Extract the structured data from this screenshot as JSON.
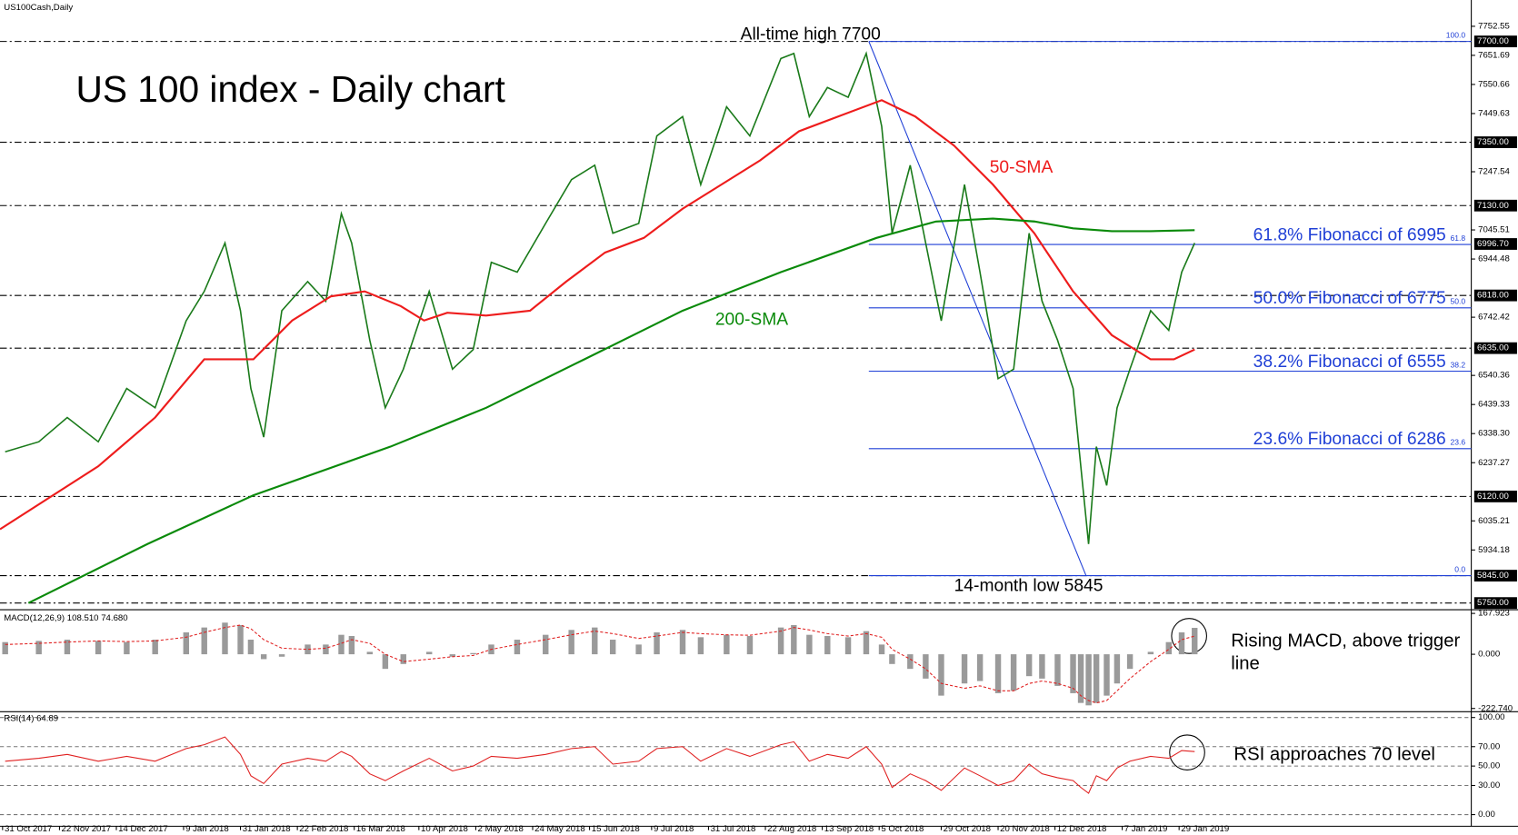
{
  "chart_data": {
    "type": "line",
    "symbol": "US100Cash,Daily",
    "title": "US 100 index - Daily chart",
    "annotations": [
      "All-time high 7700",
      "14-month low 5845"
    ],
    "xlim": [
      "2017-10-30",
      "2019-05-22"
    ],
    "xticks": [
      {
        "value": "2017-10-31",
        "label": "31 Oct 2017"
      },
      {
        "value": "2017-11-22",
        "label": "22 Nov 2017"
      },
      {
        "value": "2017-12-14",
        "label": "14 Dec 2017"
      },
      {
        "value": "2018-01-09",
        "label": "9 Jan 2018"
      },
      {
        "value": "2018-01-31",
        "label": "31 Jan 2018"
      },
      {
        "value": "2018-02-22",
        "label": "22 Feb 2018"
      },
      {
        "value": "2018-03-16",
        "label": "16 Mar 2018"
      },
      {
        "value": "2018-04-10",
        "label": "10 Apr 2018"
      },
      {
        "value": "2018-05-02",
        "label": "2 May 2018"
      },
      {
        "value": "2018-05-24",
        "label": "24 May 2018"
      },
      {
        "value": "2018-06-15",
        "label": "15 Jun 2018"
      },
      {
        "value": "2018-07-09",
        "label": "9 Jul 2018"
      },
      {
        "value": "2018-07-31",
        "label": "31 Jul 2018"
      },
      {
        "value": "2018-08-22",
        "label": "22 Aug 2018"
      },
      {
        "value": "2018-09-13",
        "label": "13 Sep 2018"
      },
      {
        "value": "2018-10-05",
        "label": "5 Oct 2018"
      },
      {
        "value": "2018-10-29",
        "label": "29 Oct 2018"
      },
      {
        "value": "2018-11-20",
        "label": "20 Nov 2018"
      },
      {
        "value": "2018-12-12",
        "label": "12 Dec 2018"
      },
      {
        "value": "2019-01-07",
        "label": "7 Jan 2019"
      },
      {
        "value": "2019-01-29",
        "label": "29 Jan 2019"
      }
    ],
    "ylim": [
      5730,
      7827
    ],
    "yticks": [
      {
        "value": 7752.55,
        "label": "7752.55"
      },
      {
        "value": 7651.69,
        "label": "7651.69"
      },
      {
        "value": 7550.66,
        "label": "7550.66"
      },
      {
        "value": 7449.63,
        "label": "7449.63"
      },
      {
        "value": 7247.54,
        "label": "7247.54"
      },
      {
        "value": 7045.51,
        "label": "7045.51"
      },
      {
        "value": 6944.48,
        "label": "6944.48"
      },
      {
        "value": 6742.42,
        "label": "6742.42"
      },
      {
        "value": 6540.36,
        "label": "6540.36"
      },
      {
        "value": 6439.33,
        "label": "6439.33"
      },
      {
        "value": 6338.3,
        "label": "6338.30"
      },
      {
        "value": 6237.27,
        "label": "6237.27"
      },
      {
        "value": 6035.21,
        "label": "6035.21"
      },
      {
        "value": 5934.18,
        "label": "5934.18"
      }
    ],
    "levels": [
      {
        "value": 7700,
        "label": "7700.00"
      },
      {
        "value": 7350,
        "label": "7350.00"
      },
      {
        "value": 7130,
        "label": "7130.00"
      },
      {
        "value": 6818,
        "label": "6818.00"
      },
      {
        "value": 6635,
        "label": "6635.00"
      },
      {
        "value": 6120,
        "label": "6120.00"
      },
      {
        "value": 5845,
        "label": "5845.00"
      },
      {
        "value": 5750,
        "label": "5750.00"
      }
    ],
    "last_price": {
      "value": 6996.7,
      "label": "6996.70"
    },
    "series": [
      {
        "color": "#1a7a1a",
        "x": [
          "2017-11-01",
          "2017-11-14",
          "2017-11-25",
          "2017-12-07",
          "2017-12-18",
          "2017-12-29",
          "2018-01-10",
          "2018-01-17",
          "2018-01-25",
          "2018-01-31",
          "2018-02-04",
          "2018-02-09",
          "2018-02-16",
          "2018-02-26",
          "2018-03-05",
          "2018-03-11",
          "2018-03-15",
          "2018-03-22",
          "2018-03-28",
          "2018-04-04",
          "2018-04-14",
          "2018-04-23",
          "2018-05-01",
          "2018-05-08",
          "2018-05-18",
          "2018-05-29",
          "2018-06-08",
          "2018-06-17",
          "2018-06-24",
          "2018-07-04",
          "2018-07-11",
          "2018-07-21",
          "2018-07-28",
          "2018-08-07",
          "2018-08-16",
          "2018-08-28",
          "2018-09-02",
          "2018-09-08",
          "2018-09-15",
          "2018-09-23",
          "2018-09-30",
          "2018-10-06",
          "2018-10-10",
          "2018-10-17",
          "2018-10-23",
          "2018-10-29",
          "2018-11-07",
          "2018-11-13",
          "2018-11-20",
          "2018-11-26",
          "2018-12-02",
          "2018-12-07",
          "2018-12-13",
          "2018-12-19",
          "2018-12-22",
          "2018-12-25",
          "2018-12-28",
          "2019-01-01",
          "2019-01-05",
          "2019-01-10",
          "2019-01-18",
          "2019-01-25",
          "2019-01-30",
          "2019-02-04"
        ],
        "values": [
          6275,
          6310,
          6394,
          6310,
          6495,
          6428,
          6730,
          6832,
          7000,
          6765,
          6495,
          6326,
          6765,
          6866,
          6798,
          7102,
          7000,
          6663,
          6428,
          6562,
          6832,
          6562,
          6630,
          6933,
          6899,
          7068,
          7220,
          7270,
          7034,
          7068,
          7372,
          7439,
          7203,
          7473,
          7372,
          7641,
          7658,
          7439,
          7540,
          7506,
          7658,
          7405,
          7034,
          7270,
          7000,
          6730,
          7203,
          6899,
          6529,
          6562,
          7034,
          6798,
          6663,
          6495,
          6225,
          5955,
          6293,
          6158,
          6428,
          6562,
          6765,
          6697,
          6899,
          7000
        ]
      },
      {
        "name": "50-SMA",
        "color": "#ee1c1c",
        "x": [
          "2017-10-30",
          "2017-12-07",
          "2017-12-29",
          "2018-01-17",
          "2018-02-05",
          "2018-02-20",
          "2018-03-07",
          "2018-03-20",
          "2018-04-03",
          "2018-04-12",
          "2018-04-21",
          "2018-05-06",
          "2018-05-23",
          "2018-06-06",
          "2018-06-21",
          "2018-07-06",
          "2018-07-21",
          "2018-08-05",
          "2018-08-20",
          "2018-09-04",
          "2018-09-19",
          "2018-10-06",
          "2018-10-19",
          "2018-11-03",
          "2018-11-18",
          "2018-12-04",
          "2018-12-19",
          "2019-01-03",
          "2019-01-18",
          "2019-01-27",
          "2019-02-04"
        ],
        "values": [
          6006,
          6225,
          6394,
          6596,
          6596,
          6731,
          6815,
          6832,
          6781,
          6731,
          6758,
          6748,
          6765,
          6866,
          6967,
          7018,
          7119,
          7203,
          7287,
          7388,
          7439,
          7496,
          7439,
          7338,
          7203,
          7034,
          6832,
          6680,
          6596,
          6596,
          6630
        ]
      },
      {
        "name": "200-SMA",
        "color": "#0a8a0a",
        "x": [
          "2017-11-10",
          "2017-12-26",
          "2018-02-05",
          "2018-03-30",
          "2018-05-06",
          "2018-06-13",
          "2018-07-21",
          "2018-08-28",
          "2018-10-04",
          "2018-10-27",
          "2018-11-18",
          "2018-12-04",
          "2018-12-19",
          "2019-01-03",
          "2019-01-18",
          "2019-02-04"
        ],
        "values": [
          5750,
          5955,
          6124,
          6293,
          6428,
          6596,
          6765,
          6899,
          7018,
          7075,
          7085,
          7075,
          7051,
          7041,
          7041,
          7045
        ]
      }
    ],
    "trendline": {
      "color": "#1f3fd6",
      "x": [
        "2018-10-01",
        "2018-12-24"
      ],
      "values": [
        7700,
        5845
      ]
    },
    "fibonacci": {
      "color": "#1f3fd6",
      "start": "2018-10-01",
      "levels": [
        {
          "ratio": "100.0",
          "value": 7700
        },
        {
          "ratio": "61.8",
          "value": 6995,
          "text": "61.8% Fibonacci of 6995"
        },
        {
          "ratio": "50.0",
          "value": 6775,
          "text": "50.0% Fibonacci of 6775"
        },
        {
          "ratio": "38.2",
          "value": 6555,
          "text": "38.2% Fibonacci of 6555"
        },
        {
          "ratio": "23.6",
          "value": 6286,
          "text": "23.6% Fibonacci of 6286"
        },
        {
          "ratio": "0.0",
          "value": 5845
        }
      ]
    },
    "indicators": [
      {
        "type": "macd",
        "label": "MACD(12,26,9) 108.510 74.680",
        "annotation": "Rising MACD, above trigger line",
        "ylim": [
          -228,
          175
        ],
        "yticks": [
          167.923,
          {
            "value": 0,
            "label": "0.000"
          },
          {
            "value": -222.74,
            "label": "-222.740"
          }
        ],
        "series": [
          {
            "color": "#9a9a9a",
            "values": [
              50,
              55,
              60,
              55,
              50,
              60,
              90,
              110,
              130,
              120,
              60,
              -20,
              -10,
              40,
              40,
              80,
              75,
              10,
              -60,
              -40,
              10,
              -10,
              5,
              40,
              60,
              80,
              100,
              110,
              60,
              40,
              90,
              100,
              70,
              80,
              75,
              110,
              120,
              80,
              75,
              70,
              95,
              40,
              -40,
              -60,
              -100,
              -170,
              -120,
              -110,
              -160,
              -150,
              -90,
              -100,
              -130,
              -160,
              -200,
              -210,
              -200,
              -170,
              -120,
              -60,
              10,
              50,
              90,
              108.51
            ]
          },
          {
            "color": "#e02020",
            "values": [
              40,
              45,
              50,
              55,
              52,
              55,
              70,
              90,
              110,
              120,
              105,
              60,
              25,
              20,
              25,
              45,
              60,
              45,
              0,
              -30,
              -20,
              -10,
              -5,
              20,
              40,
              60,
              80,
              95,
              85,
              65,
              75,
              90,
              85,
              80,
              78,
              95,
              110,
              100,
              85,
              75,
              85,
              70,
              20,
              -20,
              -60,
              -120,
              -140,
              -130,
              -150,
              -150,
              -120,
              -110,
              -120,
              -140,
              -170,
              -190,
              -200,
              -190,
              -150,
              -100,
              -30,
              20,
              60,
              74.68
            ]
          }
        ]
      },
      {
        "type": "line",
        "label": "RSI(14) 64.89",
        "annotation": "RSI approaches 70 level",
        "ylim": [
          -12,
          106
        ],
        "grid": true,
        "yticks": [
          {
            "value": 100,
            "label": "100.00"
          },
          {
            "value": 70,
            "label": "70.00"
          },
          {
            "value": 50,
            "label": "50.00"
          },
          {
            "value": 30,
            "label": "30.00"
          },
          {
            "value": 0,
            "label": "0.00"
          }
        ],
        "series": [
          {
            "color": "#e02020",
            "values": [
              55,
              58,
              62,
              55,
              60,
              55,
              68,
              72,
              80,
              62,
              40,
              32,
              52,
              58,
              55,
              65,
              60,
              42,
              35,
              45,
              58,
              45,
              50,
              60,
              58,
              62,
              68,
              70,
              52,
              55,
              68,
              70,
              55,
              68,
              60,
              72,
              75,
              55,
              62,
              58,
              70,
              52,
              28,
              42,
              35,
              25,
              48,
              40,
              30,
              35,
              52,
              42,
              38,
              35,
              28,
              22,
              40,
              35,
              48,
              55,
              60,
              58,
              66,
              64.89
            ]
          }
        ]
      }
    ]
  }
}
